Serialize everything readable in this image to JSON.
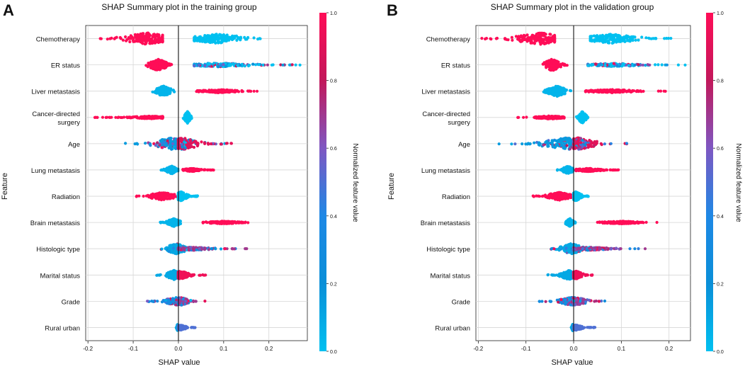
{
  "colors": {
    "high": "#ff0d57",
    "mid": "#7b52ae",
    "low": "#008bd5",
    "lowest": "#1e88e5",
    "gradient_stops": [
      "#00c0f0",
      "#0a8fd8",
      "#1e88e5",
      "#7e57c2",
      "#c2185b",
      "#ff0d57"
    ]
  },
  "chart_data": [
    {
      "panel_label": "A",
      "type": "scatter",
      "subtype": "shap-beeswarm",
      "title": "SHAP Summary plot in the training group",
      "xlabel": "SHAP value",
      "ylabel": "Feature",
      "xlim": [
        -0.205,
        0.285
      ],
      "xticks": [
        -0.2,
        -0.1,
        0.0,
        0.1,
        0.2
      ],
      "xtick_labels": [
        "-0.2",
        "-0.1",
        "0.0",
        "0.1",
        "0.2"
      ],
      "grid": true,
      "colorbar": {
        "label": "Normalized feature value",
        "ticks": [
          "0.0",
          "0.2",
          "0.4",
          "0.6",
          "0.8",
          "1.0"
        ],
        "range": [
          0,
          1
        ]
      },
      "features": [
        {
          "name": "Chemotherapy",
          "label_lines": [
            "Chemotherapy"
          ],
          "groups": [
            {
              "value": 1.0,
              "min": -0.19,
              "max": -0.035,
              "mode": -0.07,
              "height": 0.45
            },
            {
              "value": 0.0,
              "min": 0.035,
              "max": 0.215,
              "mode": 0.085,
              "height": 0.35
            }
          ]
        },
        {
          "name": "ER status",
          "label_lines": [
            "ER status"
          ],
          "groups": [
            {
              "value": 1.0,
              "min": -0.072,
              "max": -0.012,
              "mode": -0.045,
              "height": 0.45
            },
            {
              "value": 0.0,
              "min": 0.035,
              "max": 0.27,
              "mode": 0.09,
              "height": 0.15,
              "mixed": 0.5
            }
          ]
        },
        {
          "name": "Liver metastasis",
          "label_lines": [
            "Liver metastasis"
          ],
          "groups": [
            {
              "value": 0.05,
              "min": -0.06,
              "max": -0.005,
              "mode": -0.033,
              "height": 0.4
            },
            {
              "value": 1.0,
              "min": 0.04,
              "max": 0.18,
              "mode": 0.09,
              "height": 0.12
            }
          ]
        },
        {
          "name": "Cancer-directed surgery",
          "label_lines": [
            "Cancer-directed",
            "surgery"
          ],
          "groups": [
            {
              "value": 1.0,
              "min": -0.19,
              "max": -0.035,
              "mode": -0.06,
              "height": 0.1
            },
            {
              "value": 0.0,
              "min": 0.01,
              "max": 0.03,
              "mode": 0.02,
              "height": 0.45
            }
          ]
        },
        {
          "name": "Age",
          "label_lines": [
            "Age"
          ],
          "groups": [
            {
              "value": 0.15,
              "min": -0.12,
              "max": 0.0,
              "mode": -0.015,
              "height": 0.45,
              "mixed": 0.35
            },
            {
              "value": 0.9,
              "min": 0.0,
              "max": 0.12,
              "mode": 0.01,
              "height": 0.45,
              "mixed": 0.35
            }
          ]
        },
        {
          "name": "Lung metastasis",
          "label_lines": [
            "Lung metastasis"
          ],
          "groups": [
            {
              "value": 0.05,
              "min": -0.04,
              "max": 0.0,
              "mode": -0.015,
              "height": 0.3
            },
            {
              "value": 1.0,
              "min": 0.01,
              "max": 0.08,
              "mode": 0.03,
              "height": 0.12
            }
          ]
        },
        {
          "name": "Radiation",
          "label_lines": [
            "Radiation"
          ],
          "groups": [
            {
              "value": 1.0,
              "min": -0.095,
              "max": -0.005,
              "mode": -0.035,
              "height": 0.3
            },
            {
              "value": 0.0,
              "min": 0.0,
              "max": 0.045,
              "mode": 0.005,
              "height": 0.35
            }
          ]
        },
        {
          "name": "Brain metastasis",
          "label_lines": [
            "Brain metastasis"
          ],
          "groups": [
            {
              "value": 0.05,
              "min": -0.04,
              "max": 0.005,
              "mode": -0.01,
              "height": 0.3
            },
            {
              "value": 1.0,
              "min": 0.04,
              "max": 0.17,
              "mode": 0.1,
              "height": 0.1
            }
          ]
        },
        {
          "name": "Histologic type",
          "label_lines": [
            "Histologic type"
          ],
          "groups": [
            {
              "value": 0.1,
              "min": -0.05,
              "max": 0.02,
              "mode": -0.005,
              "height": 0.4,
              "mixed": 0.2
            },
            {
              "value": 0.7,
              "min": 0.0,
              "max": 0.16,
              "mode": 0.03,
              "height": 0.12,
              "mixed": 0.5
            }
          ]
        },
        {
          "name": "Marital status",
          "label_lines": [
            "Marital status"
          ],
          "groups": [
            {
              "value": 0.1,
              "min": -0.05,
              "max": 0.0,
              "mode": -0.01,
              "height": 0.35
            },
            {
              "value": 0.95,
              "min": 0.0,
              "max": 0.06,
              "mode": 0.005,
              "height": 0.3
            }
          ]
        },
        {
          "name": "Grade",
          "label_lines": [
            "Grade"
          ],
          "groups": [
            {
              "value": 0.3,
              "min": -0.07,
              "max": 0.01,
              "mode": -0.005,
              "height": 0.3,
              "mixed": 0.6
            },
            {
              "value": 0.7,
              "min": 0.0,
              "max": 0.06,
              "mode": 0.005,
              "height": 0.3,
              "mixed": 0.6
            }
          ]
        },
        {
          "name": "Rural urban",
          "label_lines": [
            "Rural urban"
          ],
          "groups": [
            {
              "value": 0.1,
              "min": -0.005,
              "max": 0.0,
              "mode": -0.002,
              "height": 0.25
            },
            {
              "value": 0.5,
              "min": 0.0,
              "max": 0.04,
              "mode": 0.005,
              "height": 0.2
            }
          ]
        }
      ]
    },
    {
      "panel_label": "B",
      "type": "scatter",
      "subtype": "shap-beeswarm",
      "title": "SHAP Summary plot in the validation group",
      "xlabel": "SHAP value",
      "ylabel": "Feature",
      "xlim": [
        -0.205,
        0.245
      ],
      "xticks": [
        -0.2,
        -0.1,
        0.0,
        0.1,
        0.2
      ],
      "xtick_labels": [
        "-0.2",
        "-0.1",
        "0.0",
        "0.1",
        "0.2"
      ],
      "grid": true,
      "colorbar": {
        "label": "Normalized feature value",
        "ticks": [
          "0.0",
          "0.2",
          "0.4",
          "0.6",
          "0.8",
          "1.0"
        ],
        "range": [
          0,
          1
        ]
      },
      "features": [
        {
          "name": "Chemotherapy",
          "label_lines": [
            "Chemotherapy"
          ],
          "groups": [
            {
              "value": 1.0,
              "min": -0.195,
              "max": -0.04,
              "mode": -0.07,
              "height": 0.45
            },
            {
              "value": 0.0,
              "min": 0.035,
              "max": 0.205,
              "mode": 0.08,
              "height": 0.35
            }
          ]
        },
        {
          "name": "ER status",
          "label_lines": [
            "ER status"
          ],
          "groups": [
            {
              "value": 1.0,
              "min": -0.065,
              "max": -0.01,
              "mode": -0.045,
              "height": 0.45
            },
            {
              "value": 0.0,
              "min": 0.03,
              "max": 0.235,
              "mode": 0.08,
              "height": 0.12,
              "mixed": 0.5
            }
          ]
        },
        {
          "name": "Liver metastasis",
          "label_lines": [
            "Liver metastasis"
          ],
          "groups": [
            {
              "value": 0.05,
              "min": -0.065,
              "max": -0.005,
              "mode": -0.035,
              "height": 0.4
            },
            {
              "value": 1.0,
              "min": 0.025,
              "max": 0.2,
              "mode": 0.08,
              "height": 0.12
            }
          ]
        },
        {
          "name": "Cancer-directed surgery",
          "label_lines": [
            "Cancer-directed",
            "surgery"
          ],
          "groups": [
            {
              "value": 1.0,
              "min": -0.12,
              "max": -0.02,
              "mode": -0.05,
              "height": 0.12
            },
            {
              "value": 0.0,
              "min": 0.005,
              "max": 0.03,
              "mode": 0.018,
              "height": 0.45
            }
          ]
        },
        {
          "name": "Age",
          "label_lines": [
            "Age"
          ],
          "groups": [
            {
              "value": 0.15,
              "min": -0.16,
              "max": 0.0,
              "mode": -0.015,
              "height": 0.45,
              "mixed": 0.35
            },
            {
              "value": 0.9,
              "min": 0.0,
              "max": 0.115,
              "mode": 0.01,
              "height": 0.45,
              "mixed": 0.35
            }
          ]
        },
        {
          "name": "Lung metastasis",
          "label_lines": [
            "Lung metastasis"
          ],
          "groups": [
            {
              "value": 0.05,
              "min": -0.035,
              "max": 0.0,
              "mode": -0.012,
              "height": 0.3
            },
            {
              "value": 1.0,
              "min": 0.005,
              "max": 0.1,
              "mode": 0.03,
              "height": 0.12
            }
          ]
        },
        {
          "name": "Radiation",
          "label_lines": [
            "Radiation"
          ],
          "groups": [
            {
              "value": 1.0,
              "min": -0.085,
              "max": -0.005,
              "mode": -0.03,
              "height": 0.3
            },
            {
              "value": 0.0,
              "min": 0.0,
              "max": 0.035,
              "mode": 0.005,
              "height": 0.35
            }
          ]
        },
        {
          "name": "Brain metastasis",
          "label_lines": [
            "Brain metastasis"
          ],
          "groups": [
            {
              "value": 0.05,
              "min": -0.02,
              "max": 0.005,
              "mode": -0.008,
              "height": 0.3
            },
            {
              "value": 1.0,
              "min": 0.05,
              "max": 0.18,
              "mode": 0.1,
              "height": 0.1
            }
          ]
        },
        {
          "name": "Histologic type",
          "label_lines": [
            "Histologic type"
          ],
          "groups": [
            {
              "value": 0.1,
              "min": -0.05,
              "max": 0.02,
              "mode": -0.005,
              "height": 0.4,
              "mixed": 0.2
            },
            {
              "value": 0.7,
              "min": 0.0,
              "max": 0.165,
              "mode": 0.03,
              "height": 0.12,
              "mixed": 0.5
            }
          ]
        },
        {
          "name": "Marital status",
          "label_lines": [
            "Marital status"
          ],
          "groups": [
            {
              "value": 0.1,
              "min": -0.055,
              "max": 0.0,
              "mode": -0.01,
              "height": 0.35
            },
            {
              "value": 0.95,
              "min": 0.0,
              "max": 0.045,
              "mode": 0.005,
              "height": 0.3
            }
          ]
        },
        {
          "name": "Grade",
          "label_lines": [
            "Grade"
          ],
          "groups": [
            {
              "value": 0.3,
              "min": -0.075,
              "max": 0.01,
              "mode": -0.005,
              "height": 0.3,
              "mixed": 0.6
            },
            {
              "value": 0.7,
              "min": 0.0,
              "max": 0.075,
              "mode": 0.005,
              "height": 0.3,
              "mixed": 0.6
            }
          ]
        },
        {
          "name": "Rural urban",
          "label_lines": [
            "Rural urban"
          ],
          "groups": [
            {
              "value": 0.1,
              "min": -0.005,
              "max": 0.0,
              "mode": -0.002,
              "height": 0.25
            },
            {
              "value": 0.5,
              "min": 0.0,
              "max": 0.045,
              "mode": 0.005,
              "height": 0.2
            }
          ]
        }
      ]
    }
  ]
}
